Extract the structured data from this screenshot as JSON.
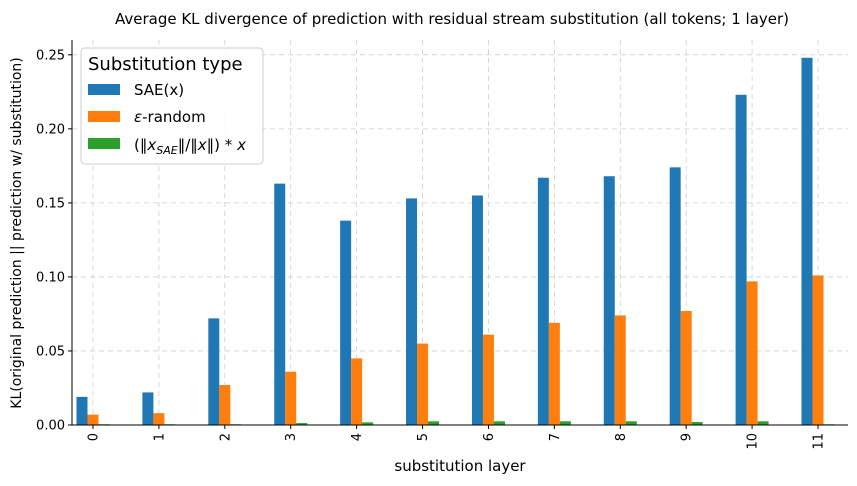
{
  "chart_data": {
    "type": "bar",
    "title": "Average KL divergence of prediction with residual stream substitution (all tokens; 1 layer)",
    "xlabel": "substitution layer",
    "ylabel": "KL(original prediction || prediction w/ substitution)",
    "categories": [
      "0",
      "1",
      "2",
      "3",
      "4",
      "5",
      "6",
      "7",
      "8",
      "9",
      "10",
      "11"
    ],
    "ylim": [
      0,
      0.26
    ],
    "yticks": [
      "0.00",
      "0.05",
      "0.10",
      "0.15",
      "0.20",
      "0.25"
    ],
    "grid": true,
    "legend": {
      "title": "Substitution type",
      "placement": "top-left"
    },
    "series": [
      {
        "name": "SAE(x)",
        "color": "#1f77b4",
        "values": [
          0.019,
          0.022,
          0.072,
          0.163,
          0.138,
          0.153,
          0.155,
          0.167,
          0.168,
          0.174,
          0.223,
          0.248
        ]
      },
      {
        "name": "ε-random",
        "color": "#ff7f0e",
        "values": [
          0.007,
          0.008,
          0.027,
          0.036,
          0.045,
          0.055,
          0.061,
          0.069,
          0.074,
          0.077,
          0.097,
          0.101
        ]
      },
      {
        "name": "(‖x_SAE‖/‖x‖) * x",
        "color": "#2ca02c",
        "values": [
          0.0005,
          0.0005,
          0.0005,
          0.0013,
          0.0018,
          0.0025,
          0.0025,
          0.0025,
          0.0025,
          0.002,
          0.0025,
          0.0005
        ]
      }
    ]
  }
}
